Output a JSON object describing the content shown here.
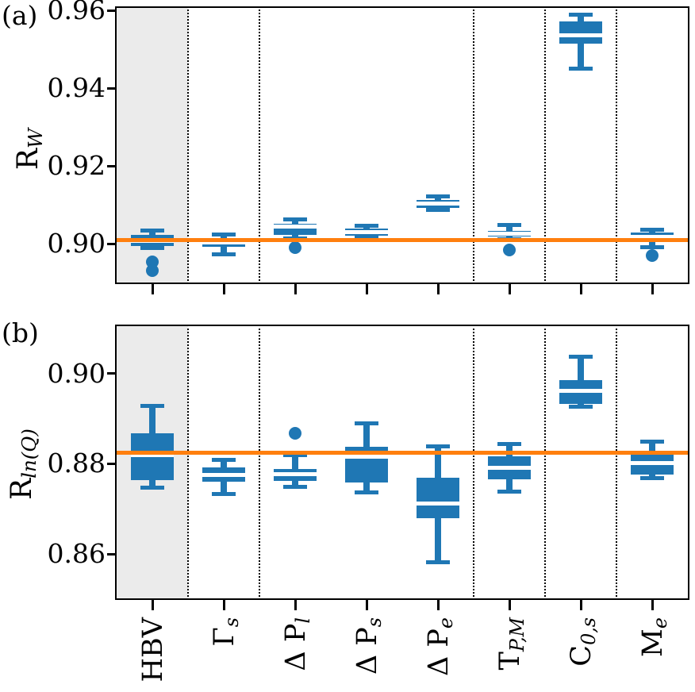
{
  "figure": {
    "panel_a_tag": "(a)",
    "panel_b_tag": "(b)"
  },
  "colors": {
    "box_fill": "#1f77b4",
    "reference_line": "#ff7f0e",
    "shaded_region": "#ebebeb",
    "axis": "#000000"
  },
  "x_axis": {
    "categories": [
      {
        "main": "HBV",
        "sub": ""
      },
      {
        "main": "Γ",
        "sub": "s"
      },
      {
        "main": "Δ P",
        "sub": "l"
      },
      {
        "main": "Δ P",
        "sub": "s"
      },
      {
        "main": "Δ P",
        "sub": "e"
      },
      {
        "main": "T",
        "sub": "P,M"
      },
      {
        "main": "C",
        "sub": "0,s"
      },
      {
        "main": "M",
        "sub": "e"
      }
    ]
  },
  "chart_data": [
    {
      "panel": "a",
      "type": "boxplot",
      "ylabel_main": "R",
      "ylabel_sub": "W",
      "ylim": [
        0.8899,
        0.9606
      ],
      "yticks": [
        0.9,
        0.92,
        0.94,
        0.96
      ],
      "grid": false,
      "reference_line": 0.9008,
      "shaded_category_index": 0,
      "separators_after_index": [
        0,
        1,
        4,
        5,
        6
      ],
      "boxes": [
        {
          "category": "HBV",
          "whislo": 0.8988,
          "q1": 0.8992,
          "med": 0.9006,
          "q3": 0.9022,
          "whishi": 0.9032,
          "fliers": [
            0.8952,
            0.893
          ]
        },
        {
          "category": "Γs",
          "whislo": 0.8972,
          "q1": 0.899,
          "med": 0.9002,
          "q3": 0.9014,
          "whishi": 0.9023,
          "fliers": []
        },
        {
          "category": "ΔPl",
          "whislo": 0.9013,
          "q1": 0.9021,
          "med": 0.9043,
          "q3": 0.9051,
          "whishi": 0.9062,
          "fliers": [
            0.8988
          ]
        },
        {
          "category": "ΔPs",
          "whislo": 0.9014,
          "q1": 0.902,
          "med": 0.9029,
          "q3": 0.9038,
          "whishi": 0.9046,
          "fliers": []
        },
        {
          "category": "ΔPe",
          "whislo": 0.9085,
          "q1": 0.9091,
          "med": 0.9102,
          "q3": 0.9112,
          "whishi": 0.912,
          "fliers": []
        },
        {
          "category": "TP,M",
          "whislo": 0.901,
          "q1": 0.9018,
          "med": 0.9024,
          "q3": 0.9032,
          "whishi": 0.9048,
          "fliers": [
            0.8982
          ]
        },
        {
          "category": "C0,s",
          "whislo": 0.945,
          "q1": 0.9515,
          "med": 0.9535,
          "q3": 0.9572,
          "whishi": 0.9588,
          "fliers": []
        },
        {
          "category": "Me",
          "whislo": 0.899,
          "q1": 0.901,
          "med": 0.9017,
          "q3": 0.9028,
          "whishi": 0.9035,
          "fliers": [
            0.8968
          ]
        }
      ]
    },
    {
      "panel": "b",
      "type": "boxplot",
      "ylabel_main": "R",
      "ylabel_sub": "ln(Q)",
      "ylim": [
        0.8501,
        0.9104
      ],
      "yticks": [
        0.86,
        0.88,
        0.9
      ],
      "grid": false,
      "reference_line": 0.8824,
      "shaded_category_index": 0,
      "separators_after_index": [
        0,
        1,
        4,
        5,
        6
      ],
      "boxes": [
        {
          "category": "HBV",
          "whislo": 0.8747,
          "q1": 0.8763,
          "med": 0.8818,
          "q3": 0.8866,
          "whishi": 0.8928,
          "fliers": []
        },
        {
          "category": "Γs",
          "whislo": 0.8732,
          "q1": 0.876,
          "med": 0.8775,
          "q3": 0.8791,
          "whishi": 0.8807,
          "fliers": []
        },
        {
          "category": "ΔPl",
          "whislo": 0.8748,
          "q1": 0.8761,
          "med": 0.8777,
          "q3": 0.8788,
          "whishi": 0.8818,
          "fliers": [
            0.8866
          ]
        },
        {
          "category": "ΔPs",
          "whislo": 0.8736,
          "q1": 0.8758,
          "med": 0.8815,
          "q3": 0.8837,
          "whishi": 0.8889,
          "fliers": []
        },
        {
          "category": "ΔPe",
          "whislo": 0.8581,
          "q1": 0.8678,
          "med": 0.8711,
          "q3": 0.8769,
          "whishi": 0.8837,
          "fliers": []
        },
        {
          "category": "TP,M",
          "whislo": 0.8737,
          "q1": 0.8765,
          "med": 0.8791,
          "q3": 0.8816,
          "whishi": 0.8843,
          "fliers": []
        },
        {
          "category": "C0,s",
          "whislo": 0.8925,
          "q1": 0.8931,
          "med": 0.896,
          "q3": 0.8985,
          "whishi": 0.9037,
          "fliers": []
        },
        {
          "category": "Me",
          "whislo": 0.8767,
          "q1": 0.8776,
          "med": 0.88,
          "q3": 0.8821,
          "whishi": 0.8849,
          "fliers": []
        }
      ]
    }
  ]
}
